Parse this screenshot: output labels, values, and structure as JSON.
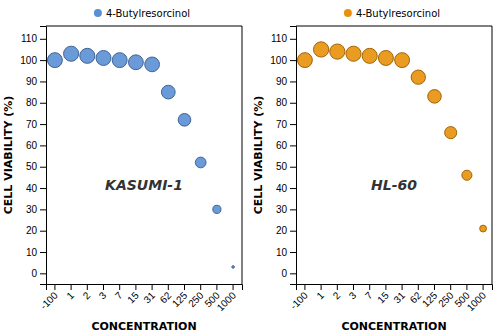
{
  "chart_data": [
    {
      "type": "scatter",
      "categories": [
        "-100",
        "1",
        "2",
        "3",
        "7",
        "15",
        "31",
        "62",
        "125",
        "250",
        "500",
        "1000"
      ],
      "series": [
        {
          "name": "4-Butylresorcinol",
          "color": "#5b8fd4",
          "values": [
            100,
            103,
            102,
            101,
            100,
            99,
            98,
            85,
            72,
            52,
            30,
            3
          ]
        }
      ],
      "xlabel": "CONCENTRATION",
      "ylabel": "CELL VIABILITY (%)",
      "annotations": [
        "KASUMI-1"
      ],
      "ylim": [
        -5,
        116
      ],
      "yticks": [
        0,
        10,
        20,
        30,
        40,
        50,
        60,
        70,
        80,
        90,
        100,
        110
      ],
      "grid": false,
      "legend": "top"
    },
    {
      "type": "scatter",
      "categories": [
        "-100",
        "1",
        "2",
        "3",
        "7",
        "15",
        "31",
        "62",
        "125",
        "250",
        "500",
        "1000"
      ],
      "series": [
        {
          "name": "4-Butylresorcinol",
          "color": "#e8900a",
          "values": [
            100,
            105,
            104,
            103,
            102,
            101,
            100,
            92,
            83,
            66,
            46,
            21
          ]
        }
      ],
      "xlabel": "CONCENTRATION",
      "ylabel": "CELL VIABILITY (%)",
      "annotations": [
        "HL-60"
      ],
      "ylim": [
        -5,
        116
      ],
      "yticks": [
        0,
        10,
        20,
        30,
        40,
        50,
        60,
        70,
        80,
        90,
        100,
        110
      ],
      "grid": false,
      "legend": "top"
    }
  ]
}
